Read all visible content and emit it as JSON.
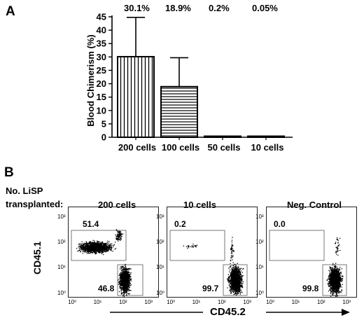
{
  "panel_a": {
    "label": "A",
    "percent_labels": [
      "30.1%",
      "18.9%",
      "0.2%",
      "0.05%"
    ]
  },
  "panel_b": {
    "label": "B",
    "row_title_line1": "No. LiSP",
    "row_title_line2": "transplanted:",
    "y_axis_label": "CD45.1",
    "x_axis_label": "CD45.2",
    "tick_labels": [
      "10⁰",
      "10¹",
      "10²",
      "10³"
    ],
    "plots": [
      {
        "title": "200 cells",
        "top_gate": "51.4",
        "bottom_gate": "46.8"
      },
      {
        "title": "10 cells",
        "top_gate": "0.2",
        "bottom_gate": "99.7"
      },
      {
        "title": "Neg. Control",
        "top_gate": "0.0",
        "bottom_gate": "99.8"
      }
    ]
  },
  "chart_data": [
    {
      "type": "bar",
      "categories": [
        "200 cells",
        "100 cells",
        "50 cells",
        "10 cells"
      ],
      "values": [
        30.1,
        18.9,
        0.2,
        0.05
      ],
      "error_upper": [
        44.8,
        29.7,
        0,
        0
      ],
      "ylabel": "Blood Chimerism (%)",
      "ylim": [
        0,
        45
      ],
      "yticks": [
        0,
        5,
        10,
        15,
        20,
        25,
        30,
        35,
        40,
        45
      ],
      "bar_patterns": [
        "vertical-hatch",
        "horizontal-hatch",
        "solid",
        "solid"
      ],
      "grid": false
    }
  ]
}
